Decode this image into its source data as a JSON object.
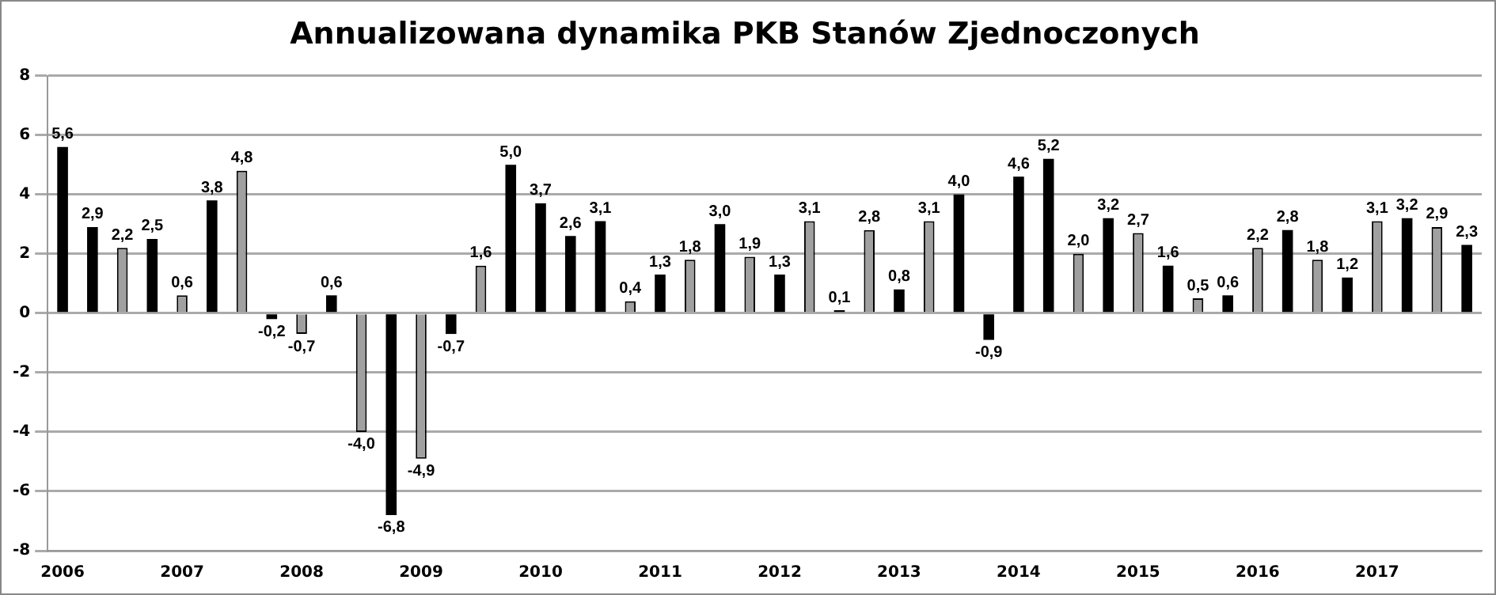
{
  "chart_data": {
    "type": "bar",
    "title": "Annualizowana dynamika PKB Stanów Zjednoczonych",
    "categories": [
      "2006",
      null,
      null,
      null,
      "2007",
      null,
      null,
      null,
      "2008",
      null,
      null,
      null,
      "2009",
      null,
      null,
      null,
      "2010",
      null,
      null,
      null,
      "2011",
      null,
      null,
      null,
      "2012",
      null,
      null,
      null,
      "2013",
      null,
      null,
      null,
      "2014",
      null,
      null,
      null,
      "2015",
      null,
      null,
      null,
      "2016",
      null,
      null,
      null,
      "2017",
      null,
      null,
      null
    ],
    "values": [
      5.6,
      2.9,
      2.2,
      2.5,
      0.6,
      3.8,
      4.8,
      -0.2,
      -0.7,
      0.6,
      -4.0,
      -6.8,
      -4.9,
      -0.7,
      1.6,
      5.0,
      3.7,
      2.6,
      3.1,
      0.4,
      1.3,
      1.8,
      3.0,
      1.9,
      1.3,
      3.1,
      0.1,
      2.8,
      0.8,
      3.1,
      4.0,
      -0.9,
      4.6,
      5.2,
      2.0,
      3.2,
      2.7,
      1.6,
      0.5,
      0.6,
      2.2,
      2.8,
      1.8,
      1.2,
      3.1,
      3.2,
      2.9,
      2.3
    ],
    "value_labels": [
      "5,6",
      "2,9",
      "2,2",
      "2,5",
      "0,6",
      "3,8",
      "4,8",
      "-0,2",
      "-0,7",
      "0,6",
      "-4,0",
      "-6,8",
      "-4,9",
      "-0,7",
      "1,6",
      "5,0",
      "3,7",
      "2,6",
      "3,1",
      "0,4",
      "1,3",
      "1,8",
      "3,0",
      "1,9",
      "1,3",
      "3,1",
      "0,1",
      "2,8",
      "0,8",
      "3,1",
      "4,0",
      "-0,9",
      "4,6",
      "5,2",
      "2,0",
      "3,2",
      "2,7",
      "1,6",
      "0,5",
      "0,6",
      "2,2",
      "2,8",
      "1,8",
      "1,2",
      "3,1",
      "3,2",
      "2,9",
      "2,3"
    ],
    "colors": [
      "#000000",
      "#000000",
      "#a0a0a0",
      "#000000",
      "#a0a0a0",
      "#000000",
      "#a0a0a0",
      "#000000",
      "#a0a0a0",
      "#000000",
      "#a0a0a0",
      "#000000",
      "#a0a0a0",
      "#000000",
      "#a0a0a0",
      "#000000",
      "#000000",
      "#000000",
      "#000000",
      "#a0a0a0",
      "#000000",
      "#a0a0a0",
      "#000000",
      "#a0a0a0",
      "#000000",
      "#a0a0a0",
      "#000000",
      "#a0a0a0",
      "#000000",
      "#a0a0a0",
      "#000000",
      "#000000",
      "#000000",
      "#000000",
      "#a0a0a0",
      "#000000",
      "#a0a0a0",
      "#000000",
      "#a0a0a0",
      "#000000",
      "#a0a0a0",
      "#000000",
      "#a0a0a0",
      "#000000",
      "#a0a0a0",
      "#000000",
      "#a0a0a0",
      "#000000"
    ],
    "ylim": [
      -8,
      8
    ],
    "yticks": [
      -8,
      -6,
      -4,
      -2,
      0,
      2,
      4,
      6,
      8
    ],
    "grid": "y",
    "legend": false
  }
}
